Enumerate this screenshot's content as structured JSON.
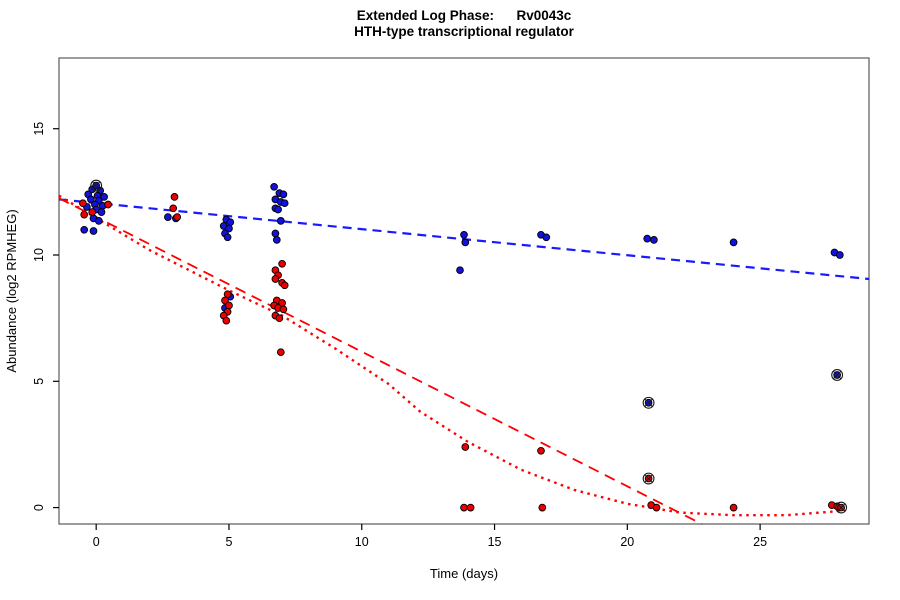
{
  "header": {
    "title_line1": "Extended Log Phase:      Rv0043c",
    "title_line2": "HTH-type transcriptional regulator"
  },
  "chart_data": {
    "type": "scatter",
    "title": "Extended Log Phase: Rv0043c",
    "subtitle": "HTH-type transcriptional regulator",
    "xlabel": "Time (days)",
    "ylabel": "Abundance (log2 RPMHEG)",
    "xlim": [
      -1.4,
      29.1
    ],
    "ylim": [
      -0.65,
      17.8
    ],
    "xticks": [
      0,
      5,
      10,
      15,
      20,
      25
    ],
    "yticks": [
      0,
      5,
      10,
      15
    ],
    "grid": false,
    "legend": null,
    "colors": {
      "blue_point": "#1212d9",
      "red_point": "#ea0000",
      "blue_line": "#1a1aff",
      "red_line": "#ff0000",
      "point_outline": "#000000",
      "ring_outline": "#1a1a1a",
      "box": "#666666"
    },
    "series": [
      {
        "name": "blue-abundance",
        "color": "#1212d9",
        "points": [
          [
            -0.15,
            12.6
          ],
          [
            0.15,
            12.55
          ],
          [
            -0.3,
            12.4
          ],
          [
            0.05,
            12.35
          ],
          [
            0.3,
            12.3
          ],
          [
            -0.2,
            12.2
          ],
          [
            0.1,
            12.15
          ],
          [
            -0.05,
            12.0
          ],
          [
            0.25,
            11.95
          ],
          [
            -0.35,
            11.9
          ],
          [
            0.0,
            11.8
          ],
          [
            0.2,
            11.7
          ],
          [
            -0.1,
            11.45
          ],
          [
            0.1,
            11.35
          ],
          [
            -0.45,
            11.0
          ],
          [
            -0.1,
            10.95
          ],
          [
            2.7,
            11.5
          ],
          [
            3.0,
            11.45
          ],
          [
            4.9,
            11.4
          ],
          [
            5.05,
            11.3
          ],
          [
            4.8,
            11.15
          ],
          [
            5.0,
            11.05
          ],
          [
            4.85,
            10.85
          ],
          [
            4.95,
            10.7
          ],
          [
            5.05,
            8.35
          ],
          [
            4.85,
            7.9
          ],
          [
            6.7,
            12.7
          ],
          [
            6.9,
            12.45
          ],
          [
            7.05,
            12.4
          ],
          [
            6.75,
            12.2
          ],
          [
            6.95,
            12.1
          ],
          [
            7.1,
            12.05
          ],
          [
            6.75,
            11.85
          ],
          [
            6.85,
            11.8
          ],
          [
            6.95,
            11.35
          ],
          [
            6.75,
            10.85
          ],
          [
            6.8,
            10.6
          ],
          [
            13.85,
            10.8
          ],
          [
            13.9,
            10.5
          ],
          [
            13.7,
            9.4
          ],
          [
            16.75,
            10.8
          ],
          [
            16.95,
            10.7
          ],
          [
            20.75,
            10.65
          ],
          [
            21.0,
            10.6
          ],
          [
            24.0,
            10.5
          ],
          [
            27.8,
            10.1
          ],
          [
            28.0,
            10.0
          ]
        ],
        "circled_points": [
          [
            0.0,
            12.75
          ],
          [
            20.8,
            4.15
          ],
          [
            27.9,
            5.25
          ]
        ]
      },
      {
        "name": "red-abundance",
        "color": "#ea0000",
        "points": [
          [
            -0.5,
            12.05
          ],
          [
            0.45,
            12.0
          ],
          [
            -0.15,
            11.7
          ],
          [
            -0.45,
            11.6
          ],
          [
            2.95,
            12.3
          ],
          [
            2.9,
            11.85
          ],
          [
            3.05,
            11.5
          ],
          [
            4.95,
            8.45
          ],
          [
            4.85,
            8.2
          ],
          [
            5.0,
            8.0
          ],
          [
            4.95,
            7.75
          ],
          [
            4.8,
            7.6
          ],
          [
            4.9,
            7.4
          ],
          [
            7.0,
            9.65
          ],
          [
            6.75,
            9.4
          ],
          [
            6.85,
            9.2
          ],
          [
            6.75,
            9.05
          ],
          [
            7.0,
            8.9
          ],
          [
            7.1,
            8.8
          ],
          [
            6.8,
            8.2
          ],
          [
            7.0,
            8.1
          ],
          [
            6.7,
            8.0
          ],
          [
            6.85,
            7.9
          ],
          [
            7.05,
            7.85
          ],
          [
            6.75,
            7.6
          ],
          [
            6.9,
            7.5
          ],
          [
            6.95,
            6.15
          ],
          [
            13.9,
            2.4
          ],
          [
            13.85,
            0.0
          ],
          [
            14.1,
            0.0
          ],
          [
            16.75,
            2.25
          ],
          [
            16.8,
            0.0
          ],
          [
            20.9,
            0.1
          ],
          [
            21.1,
            0.0
          ],
          [
            24.0,
            0.0
          ],
          [
            27.7,
            0.1
          ],
          [
            27.9,
            0.05
          ]
        ],
        "circled_points": [
          [
            20.8,
            1.15
          ],
          [
            28.05,
            0.0
          ]
        ]
      }
    ],
    "trend_lines": [
      {
        "name": "blue-trend-dashed",
        "color": "#1a1aff",
        "dash": "9 6",
        "width": 2.2,
        "points": [
          [
            -1.4,
            12.2
          ],
          [
            29.1,
            9.05
          ]
        ]
      },
      {
        "name": "red-trend-dashed",
        "color": "#ff0000",
        "dash": "11 7",
        "width": 1.8,
        "points": [
          [
            -1.4,
            12.25
          ],
          [
            22.8,
            -0.65
          ]
        ]
      },
      {
        "name": "red-trend-dotted",
        "color": "#ff0000",
        "dash": "2.5 4.5",
        "width": 2.4,
        "points": [
          [
            -1.4,
            12.35
          ],
          [
            2,
            10.2
          ],
          [
            5,
            8.6
          ],
          [
            7,
            7.6
          ],
          [
            9,
            6.3
          ],
          [
            11,
            4.9
          ],
          [
            12.2,
            3.8
          ],
          [
            14,
            2.6
          ],
          [
            16,
            1.5
          ],
          [
            18,
            0.7
          ],
          [
            20,
            0.15
          ],
          [
            22,
            -0.2
          ],
          [
            24,
            -0.3
          ],
          [
            26,
            -0.3
          ],
          [
            28.2,
            -0.12
          ]
        ]
      }
    ]
  }
}
